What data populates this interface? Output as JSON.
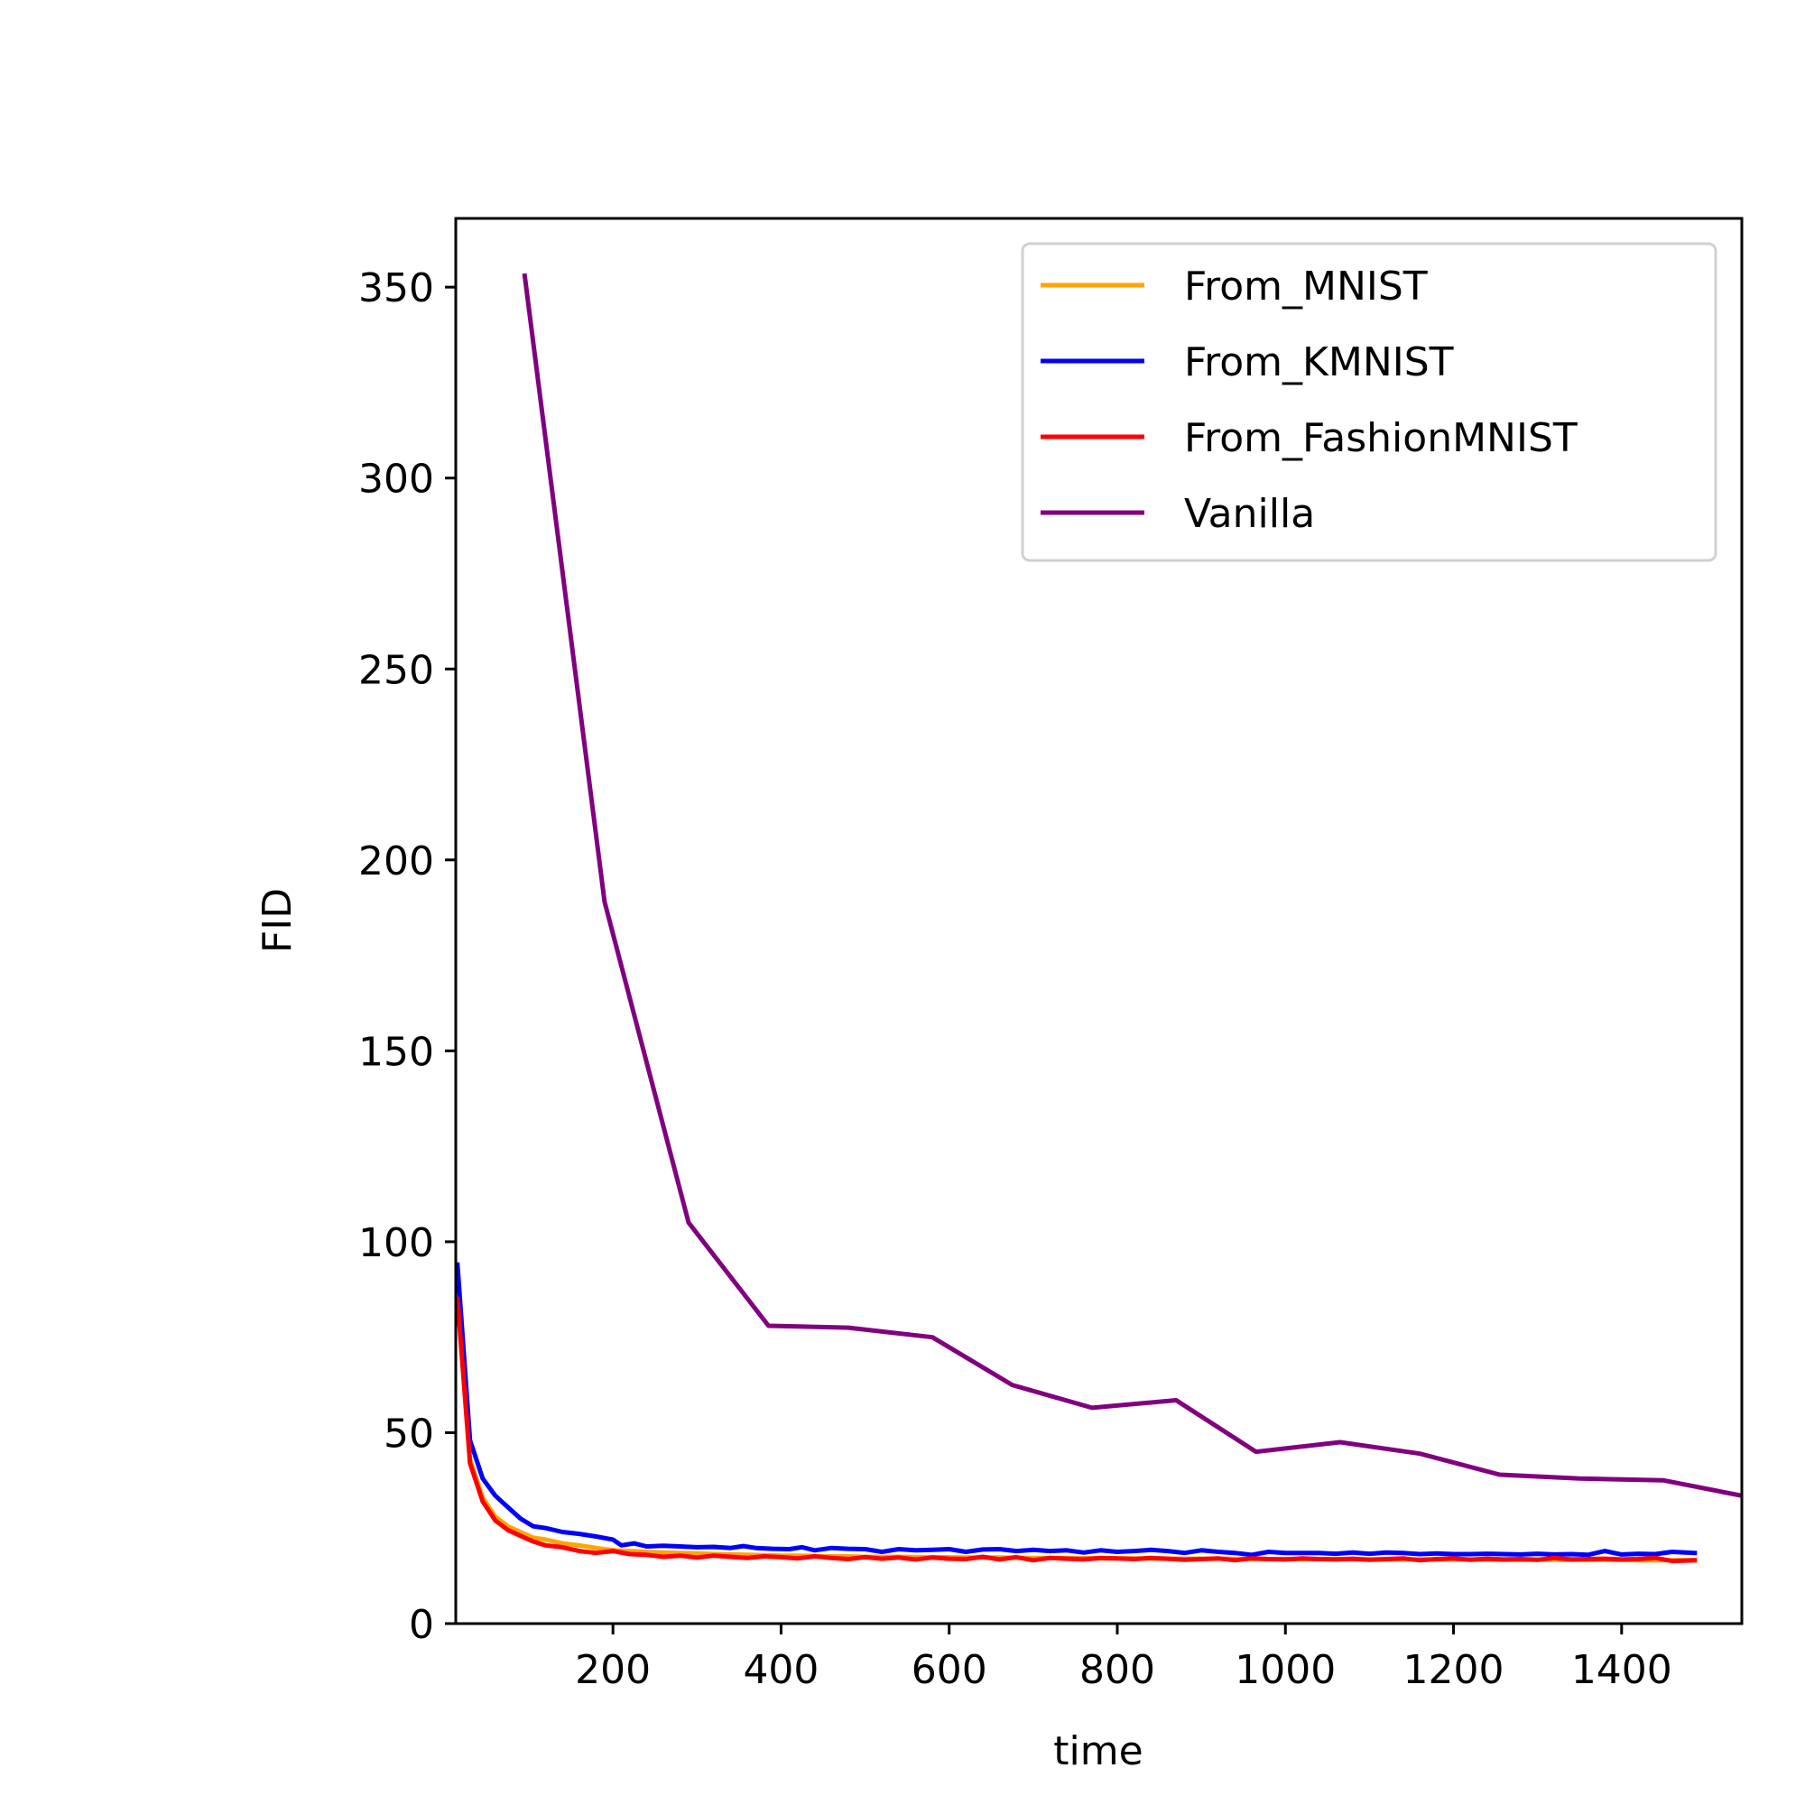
{
  "chart_data": {
    "type": "line",
    "title": "",
    "xlabel": "time",
    "ylabel": "FID",
    "xlim": [
      13,
      1543
    ],
    "ylim": [
      0,
      368
    ],
    "xticks": [
      200,
      400,
      600,
      800,
      1000,
      1200,
      1400
    ],
    "yticks": [
      0,
      50,
      100,
      150,
      200,
      250,
      300,
      350
    ],
    "grid": false,
    "legend_position": "top-right",
    "series": [
      {
        "name": "From_MNIST",
        "color": "#ffa500",
        "x": [
          15,
          30,
          45,
          60,
          75,
          90,
          105,
          120,
          140,
          160,
          180,
          200,
          220,
          240,
          260,
          280,
          300,
          320,
          340,
          360,
          380,
          400,
          420,
          440,
          460,
          480,
          500,
          540,
          580,
          620,
          660,
          700,
          740,
          780,
          820,
          860,
          900,
          940,
          980,
          1020,
          1060,
          1100,
          1140,
          1180,
          1220,
          1260,
          1300,
          1340,
          1380,
          1420,
          1460,
          1487
        ],
        "y": [
          88,
          43,
          33,
          28,
          25.5,
          24,
          22.5,
          22,
          21,
          20.5,
          19.8,
          19.2,
          19,
          18.8,
          18.6,
          18.5,
          18.4,
          18.2,
          18.1,
          18,
          17.9,
          17.8,
          17.8,
          17.7,
          17.6,
          17.6,
          17.5,
          17.5,
          17.4,
          17.3,
          17.3,
          17.2,
          17.2,
          17.1,
          17.1,
          17,
          17,
          17,
          16.9,
          16.9,
          16.9,
          16.8,
          16.8,
          16.8,
          16.8,
          16.7,
          16.7,
          16.7,
          16.7,
          16.6,
          16.6,
          16.6
        ]
      },
      {
        "name": "From_KMNIST",
        "color": "#0000ff",
        "x": [
          15,
          30,
          45,
          60,
          75,
          90,
          105,
          120,
          140,
          160,
          180,
          200,
          210,
          225,
          240,
          260,
          280,
          300,
          320,
          340,
          355,
          370,
          390,
          410,
          425,
          440,
          460,
          480,
          500,
          520,
          540,
          560,
          580,
          600,
          620,
          640,
          660,
          680,
          700,
          720,
          740,
          760,
          780,
          800,
          820,
          840,
          860,
          880,
          900,
          920,
          940,
          960,
          980,
          1000,
          1020,
          1040,
          1060,
          1080,
          1100,
          1120,
          1140,
          1160,
          1180,
          1200,
          1220,
          1240,
          1260,
          1280,
          1300,
          1320,
          1340,
          1360,
          1380,
          1400,
          1420,
          1440,
          1460,
          1487
        ],
        "y": [
          94,
          48,
          38,
          33.5,
          30.5,
          27.5,
          25.5,
          25,
          24,
          23.5,
          22.8,
          22,
          20.5,
          21,
          20.2,
          20.4,
          20.2,
          20,
          20.1,
          19.8,
          20.3,
          19.8,
          19.6,
          19.5,
          20,
          19.2,
          19.8,
          19.6,
          19.5,
          18.8,
          19.5,
          19.2,
          19.3,
          19.5,
          18.8,
          19.4,
          19.5,
          19,
          19.3,
          19,
          19.2,
          18.6,
          19.2,
          18.8,
          19,
          19.3,
          19,
          18.5,
          19.2,
          18.8,
          18.5,
          18,
          18.8,
          18.5,
          18.5,
          18.5,
          18.3,
          18.6,
          18.3,
          18.6,
          18.5,
          18.2,
          18.4,
          18.2,
          18.2,
          18.3,
          18.2,
          18.1,
          18.3,
          18.1,
          18.2,
          18,
          19,
          18.1,
          18.3,
          18.2,
          18.8,
          18.5
        ]
      },
      {
        "name": "From_FashionMNIST",
        "color": "#ff0000",
        "x": [
          15,
          30,
          45,
          60,
          75,
          90,
          105,
          120,
          140,
          160,
          180,
          200,
          220,
          240,
          260,
          280,
          300,
          320,
          340,
          360,
          380,
          400,
          420,
          440,
          460,
          480,
          500,
          520,
          540,
          560,
          580,
          600,
          620,
          640,
          660,
          680,
          700,
          720,
          740,
          760,
          780,
          800,
          820,
          840,
          860,
          880,
          900,
          920,
          940,
          960,
          980,
          1000,
          1020,
          1040,
          1060,
          1080,
          1100,
          1120,
          1140,
          1160,
          1180,
          1200,
          1220,
          1240,
          1260,
          1280,
          1300,
          1320,
          1340,
          1360,
          1380,
          1400,
          1420,
          1440,
          1460,
          1487
        ],
        "y": [
          85,
          42,
          32,
          27,
          24.5,
          23,
          21.5,
          20.5,
          20,
          19,
          18.5,
          19,
          18.2,
          18,
          17.5,
          17.8,
          17.3,
          17.8,
          17.5,
          17.2,
          17.6,
          17.4,
          17.1,
          17.6,
          17.2,
          16.9,
          17.4,
          17,
          17.3,
          16.8,
          17.3,
          17,
          16.9,
          17.5,
          16.8,
          17.4,
          16.6,
          17.2,
          17,
          16.8,
          17.2,
          17.1,
          16.9,
          17.2,
          17,
          16.7,
          16.9,
          17.1,
          16.6,
          17.1,
          16.9,
          16.8,
          17.1,
          16.9,
          16.8,
          17,
          16.7,
          16.9,
          17.1,
          16.6,
          16.9,
          17.1,
          16.7,
          17,
          16.8,
          16.9,
          16.7,
          17.2,
          16.8,
          16.9,
          17,
          16.8,
          16.9,
          17.2,
          16.4,
          16.6
        ]
      },
      {
        "name": "Vanilla",
        "color": "#800080",
        "x": [
          95,
          190,
          290,
          385,
          480,
          580,
          675,
          770,
          870,
          965,
          1065,
          1160,
          1255,
          1350,
          1450,
          1543
        ],
        "y": [
          353,
          189,
          105,
          78,
          77.5,
          75,
          62.5,
          56.5,
          58.5,
          45,
          47.5,
          44.5,
          39,
          38,
          37.5,
          33.5
        ]
      }
    ]
  }
}
